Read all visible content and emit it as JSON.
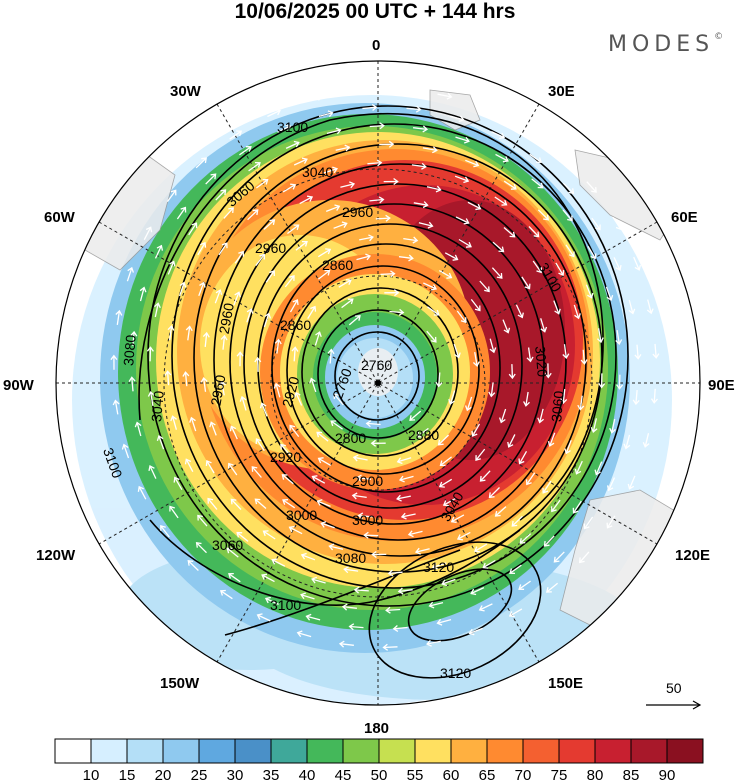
{
  "title": "10/06/2025  00 UTC  + 144 hrs",
  "brand": "MODES",
  "meridians": {
    "top": "0",
    "bottom": "180",
    "left": "90W",
    "right": "90E",
    "nw1": "30W",
    "nw2": "60W",
    "ne1": "30E",
    "ne2": "60E",
    "sw1": "120W",
    "sw2": "150W",
    "se1": "120E",
    "se2": "150E"
  },
  "vector_ref": "50",
  "contour_labels": {
    "l2760a": "2760",
    "l2760b": "2760",
    "l2800": "2800",
    "l2860a": "2860",
    "l2880": "2880",
    "l2920a": "2920",
    "l2900a": "2900",
    "l2960a": "2960",
    "l2960b": "2960",
    "l2960c": "2960",
    "l2960d": "2960",
    "l3000a": "3000",
    "l3000b": "3000",
    "l3020a": "3020",
    "l3040a": "3040",
    "l3040b": "3040",
    "l3040c": "3040",
    "l3060a": "3060",
    "l3060b": "3060",
    "l3060c": "3060",
    "l3080a": "3080",
    "l3080b": "3080",
    "l3100a": "3100",
    "l3100b": "3100",
    "l3100c": "3100",
    "l3100d": "3100",
    "l3120a": "3120",
    "l3120b": "3120",
    "l2860b": "2860",
    "l2920b": "2920"
  },
  "colorbar": {
    "labels": [
      "10",
      "15",
      "20",
      "25",
      "30",
      "35",
      "40",
      "45",
      "50",
      "55",
      "60",
      "65",
      "70",
      "75",
      "80",
      "85",
      "90"
    ],
    "colors": [
      "#ffffff",
      "#d6efff",
      "#b4dff7",
      "#8fc9ef",
      "#5fa8e0",
      "#4a90c8",
      "#3fa89a",
      "#44b85a",
      "#7ec84a",
      "#c6e050",
      "#ffe060",
      "#ffb040",
      "#ff8a30",
      "#f46030",
      "#e43a30",
      "#c82030",
      "#a8182a",
      "#8a1020"
    ]
  }
}
